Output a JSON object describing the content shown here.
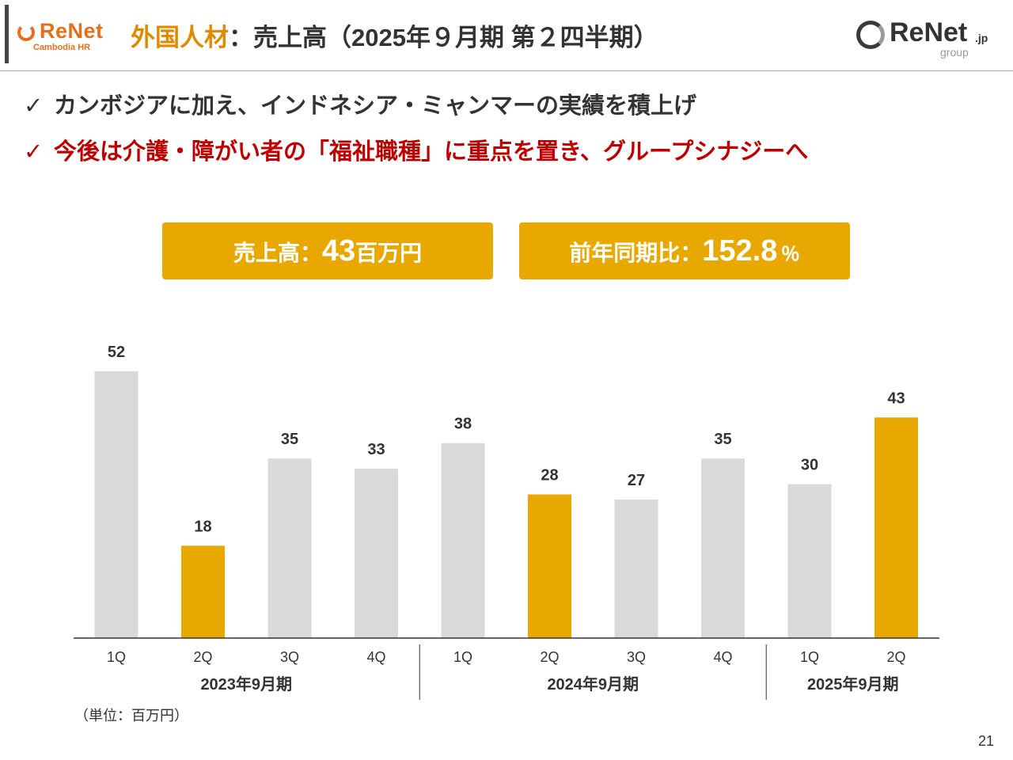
{
  "header": {
    "logo_left_name": "ReNet",
    "logo_left_sub": "Cambodia HR",
    "title_accent": "外国人材",
    "title_rest": "：売上高（2025年９月期 第２四半期）",
    "logo_right_name": "ReNet",
    "logo_right_tld": ".jp",
    "logo_right_sub": "group"
  },
  "bullets": [
    {
      "check": "✓",
      "text": "カンボジアに加え、インドネシア・ミャンマーの実績を積上げ"
    },
    {
      "check": "✓",
      "text": "今後は介護・障がい者の「福祉職種」に重点を置き、グループシナジーへ"
    }
  ],
  "kpis": {
    "sales_label": "売上高：",
    "sales_value": "43",
    "sales_unit": "百万円",
    "yoy_label": "前年同期比：",
    "yoy_value": "152.8",
    "yoy_unit": "％"
  },
  "chart_data": {
    "type": "bar",
    "categories": [
      "1Q",
      "2Q",
      "3Q",
      "4Q",
      "1Q",
      "2Q",
      "3Q",
      "4Q",
      "1Q",
      "2Q"
    ],
    "values": [
      52,
      18,
      35,
      33,
      38,
      28,
      27,
      35,
      30,
      43
    ],
    "highlight": [
      false,
      true,
      false,
      false,
      false,
      true,
      false,
      false,
      false,
      true
    ],
    "groups": [
      {
        "label": "2023年9月期",
        "count": 4
      },
      {
        "label": "2024年9月期",
        "count": 4
      },
      {
        "label": "2025年9月期",
        "count": 2
      }
    ],
    "ylim": [
      0,
      55
    ],
    "grid": false,
    "colors": {
      "normal": "#d9d9d9",
      "highlight": "#e8a800",
      "axis": "#333333"
    }
  },
  "footer": {
    "unit_note": "（単位：百万円）",
    "page_number": "21"
  }
}
